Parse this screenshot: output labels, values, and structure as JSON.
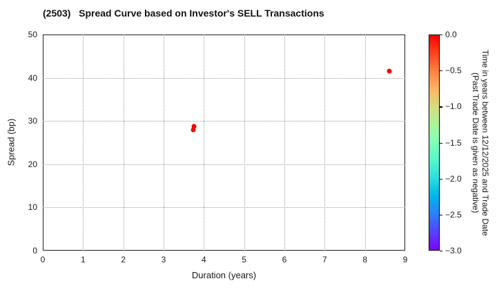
{
  "title": "(2503)   Spread Curve based on Investor's SELL Transactions",
  "chart_data": {
    "type": "scatter",
    "title": "(2503)   Spread Curve based on Investor's SELL Transactions",
    "xlabel": "Duration (years)",
    "ylabel": "Spread (bp)",
    "xlim": [
      0,
      9
    ],
    "ylim": [
      0,
      50
    ],
    "xticks": [
      0,
      1,
      2,
      3,
      4,
      5,
      6,
      7,
      8,
      9
    ],
    "yticks": [
      0,
      10,
      20,
      30,
      40,
      50
    ],
    "grid": true,
    "grid_style": "dotted",
    "legend": "none",
    "points": [
      {
        "duration": 3.73,
        "spread": 28.0,
        "time": 0.0,
        "color": "#ff0000"
      },
      {
        "duration": 3.75,
        "spread": 28.8,
        "time": 0.0,
        "color": "#ff0000"
      },
      {
        "duration": 8.6,
        "spread": 41.6,
        "time": 0.0,
        "color": "#ff0000"
      }
    ],
    "colorbar": {
      "label_line1": "Time in years between 12/12/2025 and Trade Date",
      "label_line2": "(Past Trade Date is given as negative)",
      "range_top": 0.0,
      "range_bottom": -3.0,
      "ticks": [
        "0.0",
        "−0.5",
        "−1.0",
        "−1.5",
        "−2.0",
        "−2.5",
        "−3.0"
      ],
      "colormap": "rainbow",
      "gradient": [
        "#ff0000",
        "#ff4221",
        "#ff8042",
        "#ffb461",
        "#d4dd80",
        "#aaf69b",
        "#80ffb4",
        "#55f6ca",
        "#2bdddd",
        "#00b4ec",
        "#2b80f6",
        "#5542fd",
        "#8000ff"
      ]
    },
    "marker_size_px": 7,
    "accent_color": "#ff0000"
  }
}
